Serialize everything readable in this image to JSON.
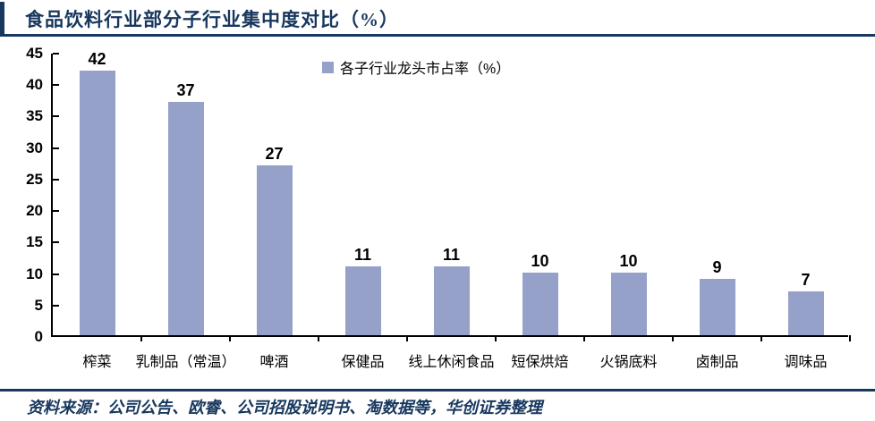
{
  "header": {
    "title": "食品饮料行业部分子行业集中度对比（%）"
  },
  "legend": {
    "label": "各子行业龙头市占率（%）"
  },
  "footer": {
    "source": "资料来源：公司公告、欧睿、公司招股说明书、淘数据等，华创证券整理"
  },
  "colors": {
    "bar": "#95A1C9",
    "navy": "#17375E",
    "axis": "#000000",
    "text": "#000000"
  },
  "chart_data": {
    "type": "bar",
    "title": "食品饮料行业部分子行业集中度对比（%）",
    "categories": [
      "榨菜",
      "乳制品（常温）",
      "啤酒",
      "保健品",
      "线上休闲食品",
      "短保烘焙",
      "火锅底料",
      "卤制品",
      "调味品"
    ],
    "values": [
      42,
      37,
      27,
      11,
      11,
      10,
      10,
      9,
      7
    ],
    "series_name": "各子行业龙头市占率（%）",
    "xlabel": "",
    "ylabel": "",
    "ylim": [
      0,
      45
    ],
    "yticks": [
      0,
      5,
      10,
      15,
      20,
      25,
      30,
      35,
      40,
      45
    ],
    "grid": false,
    "data_labels": true,
    "legend_position": "top-center",
    "bar_color": "#95A1C9"
  }
}
